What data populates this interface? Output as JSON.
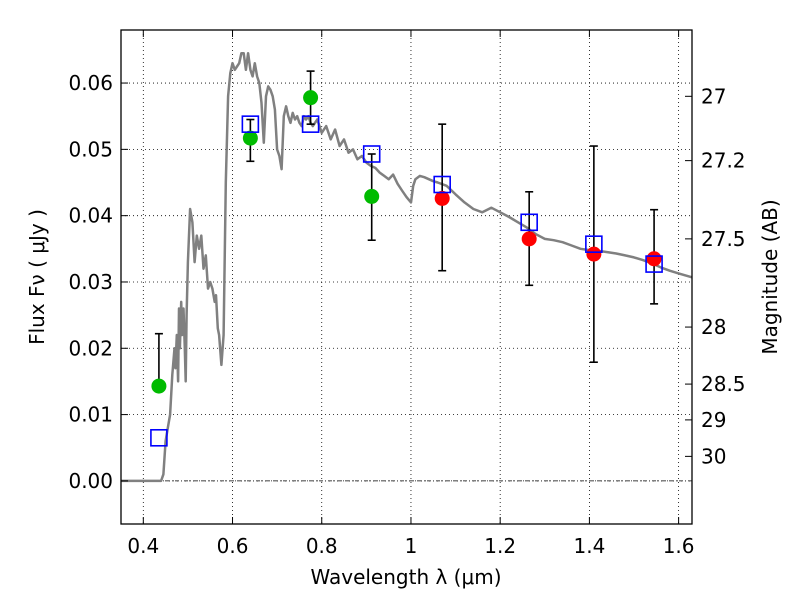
{
  "chart_data": {
    "type": "scatter",
    "xlabel": "Wavelength  λ (μm)",
    "ylabel": "Flux  Fν  ( μJy )",
    "ylabel_right": "Magnitude (AB)",
    "xlim": [
      0.35,
      1.63
    ],
    "ylim": [
      -0.0065,
      0.068
    ],
    "grid": true,
    "x_ticks": [
      0.4,
      0.6,
      0.8,
      1.0,
      1.2,
      1.4,
      1.6
    ],
    "x_tick_labels": [
      "0.4",
      "0.6",
      "0.8",
      "1",
      "1.2",
      "1.4",
      "1.6"
    ],
    "y_ticks": [
      0.0,
      0.01,
      0.02,
      0.03,
      0.04,
      0.05,
      0.06
    ],
    "y_tick_labels": [
      "0.00",
      "0.01",
      "0.02",
      "0.03",
      "0.04",
      "0.05",
      "0.06"
    ],
    "right_ticks": [
      {
        "label": "27",
        "flux": 0.058
      },
      {
        "label": "27.2",
        "flux": 0.0483
      },
      {
        "label": "27.5",
        "flux": 0.0365
      },
      {
        "label": "28",
        "flux": 0.0232
      },
      {
        "label": "28.5",
        "flux": 0.0146
      },
      {
        "label": "29",
        "flux": 0.0092
      },
      {
        "label": "30",
        "flux": 0.0037
      }
    ],
    "model_color": "#808080",
    "model_spectrum": [
      [
        0.35,
        0.0
      ],
      [
        0.43,
        0.0
      ],
      [
        0.44,
        0.0
      ],
      [
        0.445,
        0.001
      ],
      [
        0.45,
        0.006
      ],
      [
        0.455,
        0.008
      ],
      [
        0.46,
        0.01
      ],
      [
        0.465,
        0.016
      ],
      [
        0.47,
        0.02
      ],
      [
        0.472,
        0.017
      ],
      [
        0.475,
        0.022
      ],
      [
        0.478,
        0.015
      ],
      [
        0.48,
        0.026
      ],
      [
        0.482,
        0.02
      ],
      [
        0.485,
        0.027
      ],
      [
        0.487,
        0.022
      ],
      [
        0.49,
        0.026
      ],
      [
        0.493,
        0.02
      ],
      [
        0.495,
        0.015
      ],
      [
        0.497,
        0.025
      ],
      [
        0.5,
        0.033
      ],
      [
        0.505,
        0.041
      ],
      [
        0.51,
        0.039
      ],
      [
        0.515,
        0.033
      ],
      [
        0.52,
        0.037
      ],
      [
        0.525,
        0.035
      ],
      [
        0.53,
        0.037
      ],
      [
        0.535,
        0.032
      ],
      [
        0.54,
        0.034
      ],
      [
        0.545,
        0.029
      ],
      [
        0.55,
        0.03
      ],
      [
        0.555,
        0.029
      ],
      [
        0.56,
        0.027
      ],
      [
        0.563,
        0.028
      ],
      [
        0.567,
        0.023
      ],
      [
        0.57,
        0.022
      ],
      [
        0.575,
        0.0175
      ],
      [
        0.58,
        0.022
      ],
      [
        0.585,
        0.045
      ],
      [
        0.59,
        0.058
      ],
      [
        0.595,
        0.0615
      ],
      [
        0.6,
        0.063
      ],
      [
        0.605,
        0.062
      ],
      [
        0.61,
        0.0625
      ],
      [
        0.615,
        0.063
      ],
      [
        0.62,
        0.0645
      ],
      [
        0.625,
        0.0645
      ],
      [
        0.63,
        0.062
      ],
      [
        0.635,
        0.0645
      ],
      [
        0.64,
        0.062
      ],
      [
        0.645,
        0.061
      ],
      [
        0.65,
        0.063
      ],
      [
        0.655,
        0.061
      ],
      [
        0.66,
        0.06
      ],
      [
        0.665,
        0.057
      ],
      [
        0.67,
        0.051
      ],
      [
        0.675,
        0.058
      ],
      [
        0.68,
        0.0595
      ],
      [
        0.685,
        0.059
      ],
      [
        0.69,
        0.058
      ],
      [
        0.695,
        0.056
      ],
      [
        0.7,
        0.05
      ],
      [
        0.705,
        0.049
      ],
      [
        0.71,
        0.047
      ],
      [
        0.715,
        0.055
      ],
      [
        0.72,
        0.0565
      ],
      [
        0.725,
        0.055
      ],
      [
        0.73,
        0.054
      ],
      [
        0.735,
        0.0555
      ],
      [
        0.74,
        0.0545
      ],
      [
        0.745,
        0.055
      ],
      [
        0.75,
        0.054
      ],
      [
        0.755,
        0.0535
      ],
      [
        0.76,
        0.055
      ],
      [
        0.765,
        0.0545
      ],
      [
        0.77,
        0.055
      ],
      [
        0.775,
        0.054
      ],
      [
        0.78,
        0.0535
      ],
      [
        0.79,
        0.0545
      ],
      [
        0.8,
        0.0525
      ],
      [
        0.81,
        0.0535
      ],
      [
        0.82,
        0.0515
      ],
      [
        0.83,
        0.053
      ],
      [
        0.84,
        0.0505
      ],
      [
        0.85,
        0.0515
      ],
      [
        0.86,
        0.0495
      ],
      [
        0.87,
        0.05
      ],
      [
        0.88,
        0.0485
      ],
      [
        0.89,
        0.049
      ],
      [
        0.9,
        0.048
      ],
      [
        0.91,
        0.0475
      ],
      [
        0.92,
        0.0472
      ],
      [
        0.93,
        0.0465
      ],
      [
        0.94,
        0.046
      ],
      [
        0.95,
        0.0455
      ],
      [
        0.96,
        0.0462
      ],
      [
        0.97,
        0.0448
      ],
      [
        0.98,
        0.0438
      ],
      [
        0.99,
        0.0428
      ],
      [
        1.0,
        0.042
      ],
      [
        1.005,
        0.0445
      ],
      [
        1.01,
        0.0455
      ],
      [
        1.02,
        0.046
      ],
      [
        1.03,
        0.0458
      ],
      [
        1.04,
        0.0455
      ],
      [
        1.05,
        0.0452
      ],
      [
        1.06,
        0.045
      ],
      [
        1.08,
        0.0445
      ],
      [
        1.1,
        0.0432
      ],
      [
        1.12,
        0.042
      ],
      [
        1.14,
        0.041
      ],
      [
        1.16,
        0.0405
      ],
      [
        1.18,
        0.0412
      ],
      [
        1.2,
        0.0405
      ],
      [
        1.22,
        0.0398
      ],
      [
        1.24,
        0.039
      ],
      [
        1.26,
        0.0382
      ],
      [
        1.28,
        0.0372
      ],
      [
        1.3,
        0.0365
      ],
      [
        1.32,
        0.0363
      ],
      [
        1.34,
        0.036
      ],
      [
        1.36,
        0.0355
      ],
      [
        1.38,
        0.035
      ],
      [
        1.4,
        0.0348
      ],
      [
        1.42,
        0.0347
      ],
      [
        1.44,
        0.0345
      ],
      [
        1.46,
        0.0343
      ],
      [
        1.48,
        0.034
      ],
      [
        1.5,
        0.0337
      ],
      [
        1.52,
        0.0333
      ],
      [
        1.54,
        0.0328
      ],
      [
        1.56,
        0.0322
      ],
      [
        1.58,
        0.0317
      ],
      [
        1.6,
        0.0313
      ],
      [
        1.63,
        0.0307
      ]
    ],
    "model_points": {
      "color": "#0000ff",
      "x": [
        0.435,
        0.64,
        0.775,
        0.912,
        1.07,
        1.265,
        1.41,
        1.545
      ],
      "y": [
        0.0065,
        0.0538,
        0.0538,
        0.0493,
        0.0447,
        0.039,
        0.0357,
        0.0327
      ]
    },
    "series": [
      {
        "color": "#00bb00",
        "x": [
          0.435,
          0.64,
          0.775,
          0.912
        ],
        "y": [
          0.0143,
          0.0517,
          0.0578,
          0.0429
        ],
        "err_low": [
          0.0143,
          0.0482,
          0.0538,
          0.0363
        ],
        "err_high": [
          0.0222,
          0.0545,
          0.0618,
          0.0493
        ]
      },
      {
        "color": "#ff0000",
        "x": [
          1.07,
          1.265,
          1.41,
          1.545
        ],
        "y": [
          0.0426,
          0.0365,
          0.0342,
          0.0335
        ],
        "err_low": [
          0.0317,
          0.0295,
          0.0179,
          0.0267
        ],
        "err_high": [
          0.0538,
          0.0436,
          0.0505,
          0.0409
        ]
      }
    ]
  }
}
